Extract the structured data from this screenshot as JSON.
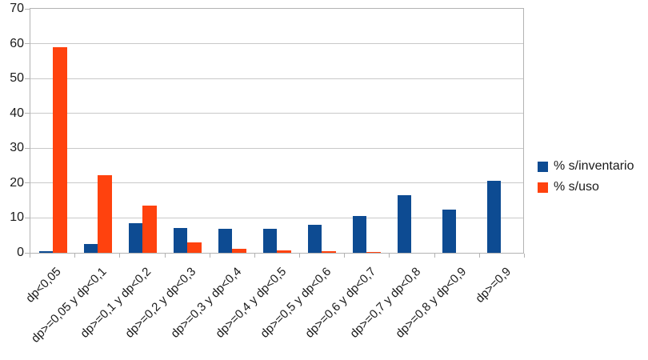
{
  "chart_data": {
    "type": "bar",
    "title": "",
    "xlabel": "",
    "ylabel": "",
    "categories": [
      "dp<0,05",
      "dp>=0,05 y dp<0,1",
      "dp>=0,1 y dp<0,2",
      "dp>=0,2 y dp<0,3",
      "dp>=0,3 y dp<0,4",
      "dp>=0,4 y dp<0,5",
      "dp>=0,5 y dp<0,6",
      "dp>=0,6 y dp<0,7",
      "dp>=0,7 y dp<0,8",
      "dp>=0,8 y dp<0,9",
      "dp>=0,9"
    ],
    "series": [
      {
        "name": "% s/inventario",
        "color": "#0d4b92",
        "values": [
          0.4,
          2.6,
          8.4,
          7.2,
          7.0,
          6.9,
          8.0,
          10.5,
          16.5,
          12.5,
          20.6
        ]
      },
      {
        "name": "% s/uso",
        "color": "#ff420e",
        "values": [
          59.1,
          22.2,
          13.6,
          2.9,
          1.2,
          0.8,
          0.4,
          0.3,
          0,
          0,
          0
        ]
      }
    ],
    "ylim": [
      0,
      70
    ],
    "y_ticks": [
      0,
      10,
      20,
      30,
      40,
      50,
      60,
      70
    ],
    "grid": "horizontal",
    "legend_position": "right"
  },
  "colors": {
    "grid": "#c9c9c9",
    "axis": "#b3b3b3",
    "text": "#1a1a1a",
    "background": "#ffffff"
  }
}
